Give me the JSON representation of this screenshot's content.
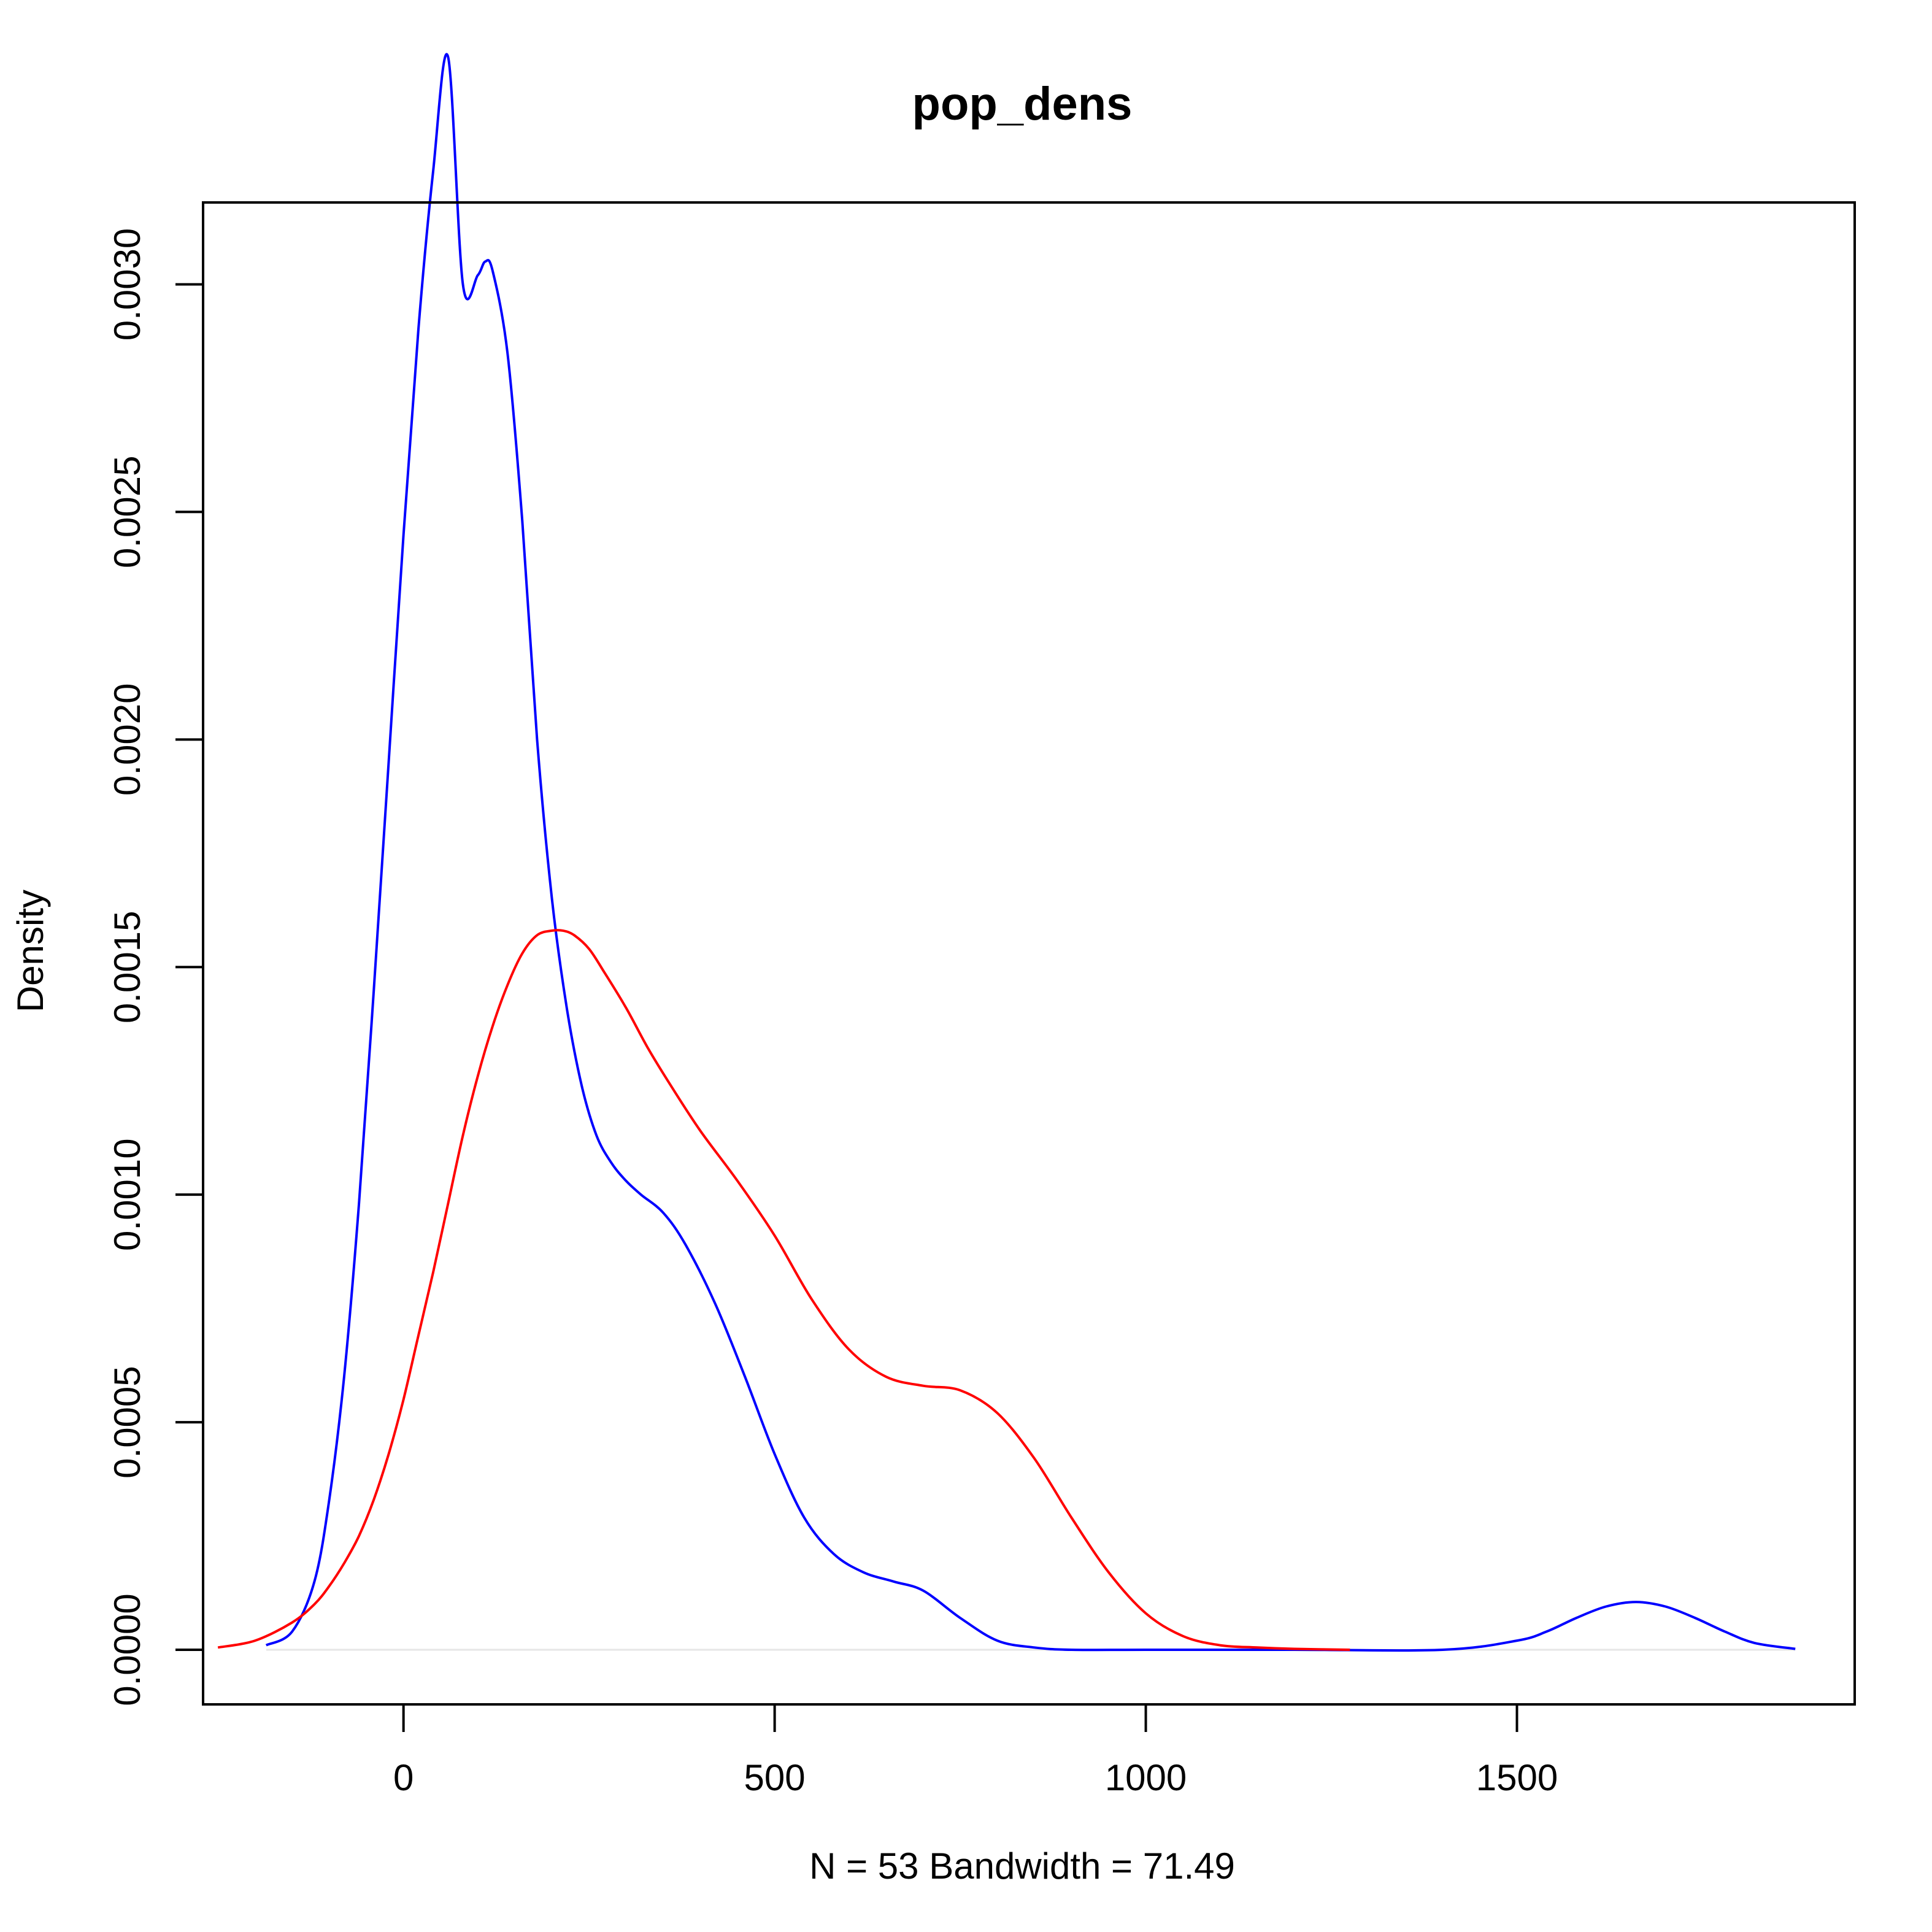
{
  "chart_data": {
    "type": "line",
    "title": "pop_dens",
    "xlabel": "N = 53   Bandwidth = 71.49",
    "ylabel": "Density",
    "xlim": [
      -270,
      1955
    ],
    "ylim": [
      -0.00012,
      0.00318
    ],
    "x_ticks": [
      0,
      500,
      1000,
      1500
    ],
    "x_tick_labels": [
      "0",
      "500",
      "1000",
      "1500"
    ],
    "y_ticks": [
      0.0,
      0.0005,
      0.001,
      0.0015,
      0.002,
      0.0025,
      0.003
    ],
    "y_tick_labels": [
      "0.0000",
      "0.0005",
      "0.0010",
      "0.0015",
      "0.0020",
      "0.0025",
      "0.0030"
    ],
    "grid": false,
    "legend": "none",
    "series": [
      {
        "color": "#0000ff",
        "x": [
          -185,
          -150,
          -120,
          -100,
          -80,
          -60,
          -40,
          -20,
          0,
          20,
          40,
          60,
          80,
          100,
          110,
          120,
          140,
          160,
          180,
          200,
          220,
          240,
          260,
          280,
          300,
          320,
          350,
          380,
          420,
          460,
          500,
          540,
          580,
          620,
          660,
          700,
          750,
          800,
          850,
          900,
          1000,
          1200,
          1400,
          1500,
          1540,
          1580,
          1620,
          1660,
          1700,
          1740,
          1780,
          1820,
          1875
        ],
        "y": [
          1e-05,
          4e-05,
          0.00015,
          0.00033,
          0.0006,
          0.00098,
          0.00145,
          0.00195,
          0.00245,
          0.0029,
          0.00325,
          0.0035,
          0.003,
          0.00302,
          0.00305,
          0.00303,
          0.00285,
          0.00248,
          0.002,
          0.00165,
          0.00141,
          0.00124,
          0.00113,
          0.00107,
          0.00103,
          0.001,
          0.00096,
          0.00089,
          0.00076,
          0.0006,
          0.00043,
          0.00029,
          0.00021,
          0.00017,
          0.00015,
          0.00013,
          7e-05,
          2e-05,
          5e-06,
          0.0,
          0.0,
          0.0,
          0.0,
          2e-05,
          4e-05,
          7e-05,
          9.5e-05,
          0.000105,
          9.5e-05,
          7e-05,
          4e-05,
          1.5e-05,
          2e-06
        ]
      },
      {
        "color": "#ff0000",
        "x": [
          -250,
          -200,
          -150,
          -120,
          -100,
          -80,
          -60,
          -40,
          -20,
          0,
          20,
          40,
          60,
          80,
          100,
          120,
          140,
          160,
          180,
          200,
          215,
          230,
          250,
          270,
          300,
          330,
          360,
          400,
          450,
          500,
          550,
          600,
          650,
          700,
          750,
          800,
          850,
          900,
          950,
          1000,
          1050,
          1100,
          1150,
          1200,
          1275
        ],
        "y": [
          5e-06,
          2e-05,
          6e-05,
          0.0001,
          0.00014,
          0.00019,
          0.00025,
          0.00033,
          0.00043,
          0.00055,
          0.00069,
          0.00083,
          0.00098,
          0.00113,
          0.00126,
          0.00137,
          0.00146,
          0.00153,
          0.00157,
          0.00158,
          0.00158,
          0.00157,
          0.00154,
          0.00149,
          0.00141,
          0.00132,
          0.00124,
          0.00114,
          0.00103,
          0.00091,
          0.00077,
          0.00066,
          0.0006,
          0.00058,
          0.00057,
          0.00052,
          0.00042,
          0.00029,
          0.00017,
          8e-05,
          3e-05,
          1e-05,
          5e-06,
          2e-06,
          0.0
        ]
      }
    ]
  }
}
